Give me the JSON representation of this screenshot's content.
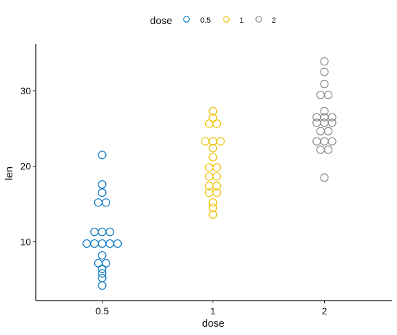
{
  "chart_data": {
    "type": "scatter",
    "subtype": "dotplot",
    "xlabel": "dose",
    "ylabel": "len",
    "categories": [
      "0.5",
      "1",
      "2"
    ],
    "ylim": [
      2.2,
      36.2
    ],
    "y_ticks": [
      10,
      20,
      30
    ],
    "grid": false,
    "legend": {
      "title": "dose",
      "position": "top",
      "items": [
        "0.5",
        "1",
        "2"
      ]
    },
    "colors": {
      "0.5": "#0073C2",
      "1": "#EFC000",
      "2": "#868686"
    },
    "series": [
      {
        "name": "0.5",
        "values": [
          4.2,
          5.2,
          5.8,
          6.4,
          7.0,
          7.3,
          8.2,
          9.4,
          9.7,
          9.7,
          10.0,
          10.0,
          11.2,
          11.2,
          11.5,
          15.2,
          15.2,
          16.5,
          17.6,
          21.5
        ]
      },
      {
        "name": "1",
        "values": [
          13.6,
          14.5,
          15.2,
          16.5,
          16.5,
          17.3,
          17.5,
          18.5,
          18.8,
          19.7,
          20.0,
          21.2,
          22.4,
          23.0,
          23.3,
          23.6,
          25.5,
          25.8,
          26.4,
          27.3
        ]
      },
      {
        "name": "2",
        "values": [
          18.5,
          22.4,
          23.0,
          23.3,
          23.6,
          24.5,
          24.8,
          25.5,
          26.4,
          26.4,
          26.7,
          27.3,
          29.4,
          29.5,
          30.9,
          32.5,
          33.9,
          25.8,
          26.0,
          22.0
        ]
      }
    ]
  }
}
